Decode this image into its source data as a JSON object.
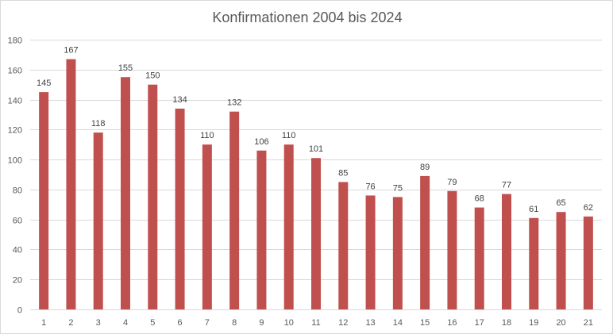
{
  "chart_data": {
    "type": "bar",
    "title": "Konfirmationen 2004 bis 2024",
    "xlabel": "",
    "ylabel": "",
    "categories": [
      "1",
      "2",
      "3",
      "4",
      "5",
      "6",
      "7",
      "8",
      "9",
      "10",
      "11",
      "12",
      "13",
      "14",
      "15",
      "16",
      "17",
      "18",
      "19",
      "20",
      "21"
    ],
    "series": [
      {
        "values": [
          145,
          167,
          118,
          155,
          150,
          134,
          110,
          132,
          106,
          110,
          101,
          85,
          76,
          75,
          89,
          79,
          68,
          77,
          61,
          65,
          62
        ]
      }
    ],
    "ylim": [
      0,
      180
    ],
    "yticks": [
      0,
      20,
      40,
      60,
      80,
      100,
      120,
      140,
      160,
      180
    ],
    "grid": "horizontal",
    "legend": "none",
    "data_labels": true,
    "bar_color": "#c0504d",
    "grid_color": "#d9d9d9"
  }
}
